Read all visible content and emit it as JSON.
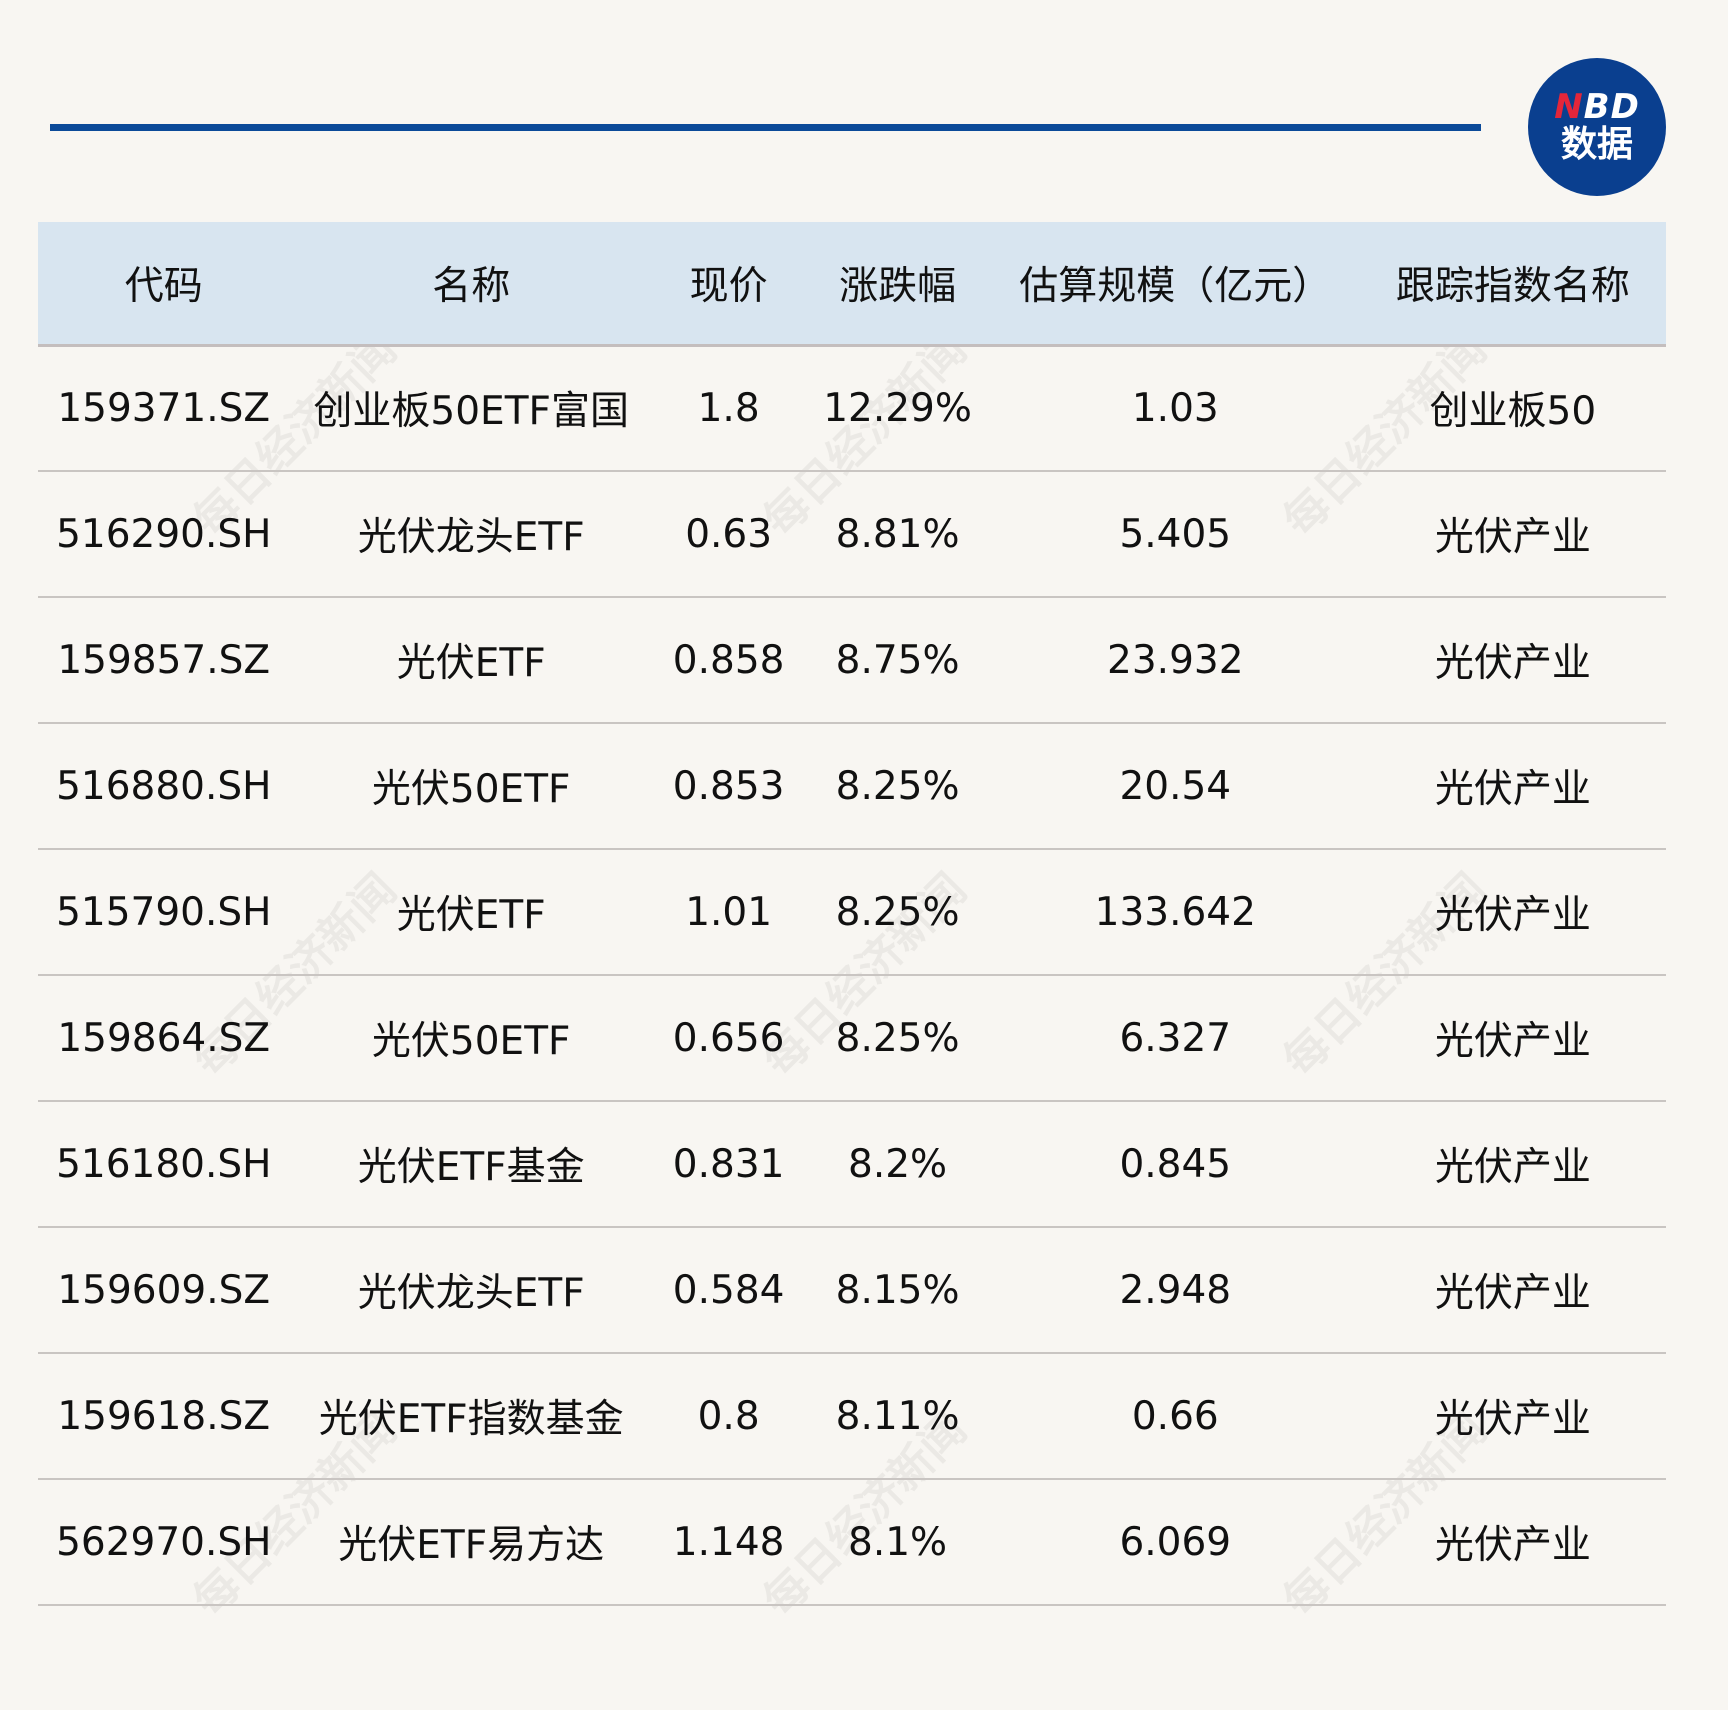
{
  "logo": {
    "brand_n": "N",
    "brand_rest": "BD",
    "sub": "数据"
  },
  "watermark": "每日经济新闻",
  "colors": {
    "accent": "#0b4a99",
    "header_bg": "#d8e5f0",
    "logo_red": "#e3263a",
    "background": "#f8f6f2"
  },
  "table": {
    "headers": [
      "代码",
      "名称",
      "现价",
      "涨跌幅",
      "估算规模（亿元）",
      "跟踪指数名称"
    ],
    "rows": [
      [
        "159371.SZ",
        "创业板50ETF富国",
        "1.8",
        "12.29%",
        "1.03",
        "创业板50"
      ],
      [
        "516290.SH",
        "光伏龙头ETF",
        "0.63",
        "8.81%",
        "5.405",
        "光伏产业"
      ],
      [
        "159857.SZ",
        "光伏ETF",
        "0.858",
        "8.75%",
        "23.932",
        "光伏产业"
      ],
      [
        "516880.SH",
        "光伏50ETF",
        "0.853",
        "8.25%",
        "20.54",
        "光伏产业"
      ],
      [
        "515790.SH",
        "光伏ETF",
        "1.01",
        "8.25%",
        "133.642",
        "光伏产业"
      ],
      [
        "159864.SZ",
        "光伏50ETF",
        "0.656",
        "8.25%",
        "6.327",
        "光伏产业"
      ],
      [
        "516180.SH",
        "光伏ETF基金",
        "0.831",
        "8.2%",
        "0.845",
        "光伏产业"
      ],
      [
        "159609.SZ",
        "光伏龙头ETF",
        "0.584",
        "8.15%",
        "2.948",
        "光伏产业"
      ],
      [
        "159618.SZ",
        "光伏ETF指数基金",
        "0.8",
        "8.11%",
        "0.66",
        "光伏产业"
      ],
      [
        "562970.SH",
        "光伏ETF易方达",
        "1.148",
        "8.1%",
        "6.069",
        "光伏产业"
      ]
    ]
  }
}
